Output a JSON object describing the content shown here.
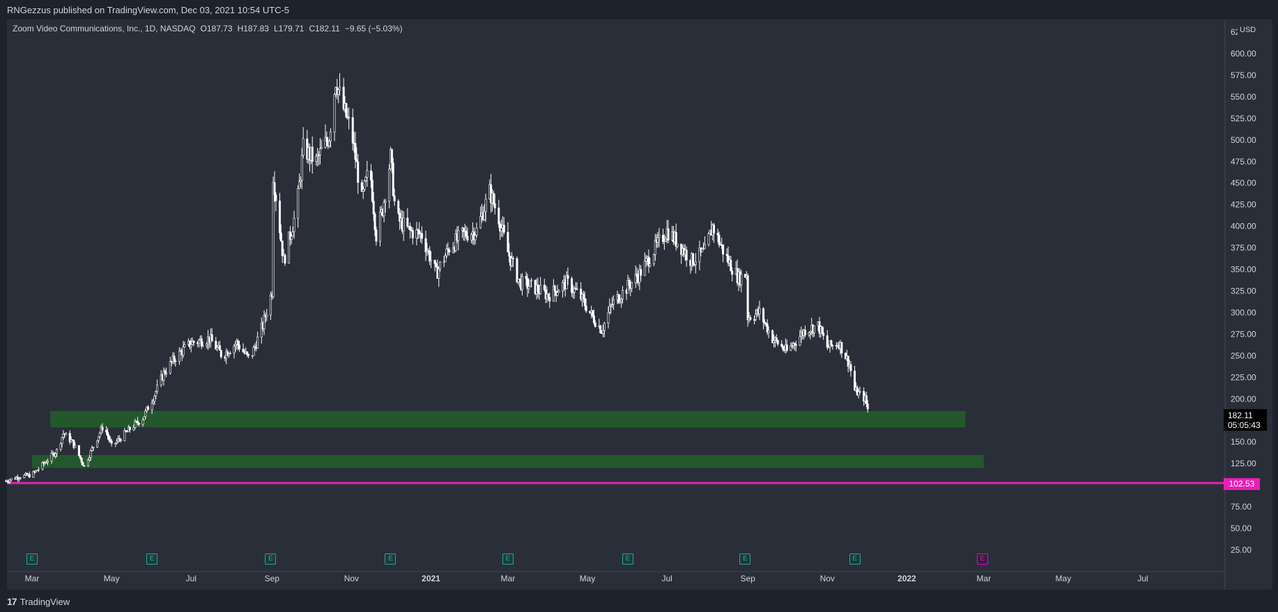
{
  "header": {
    "published_by": "RNGezzus published on TradingView.com, Dec 03, 2021 10:54 UTC-5"
  },
  "legend": {
    "symbol": "Zoom Video Communications, Inc., 1D, NASDAQ",
    "open": "O187.73",
    "high": "H187.83",
    "low": "L179.71",
    "close": "C182.11",
    "change": "−9.65 (−5.03%)"
  },
  "price_axis": {
    "currency": "USD",
    "top_partial_label": "62"
  },
  "last_price": {
    "value": "182.11",
    "countdown": "05:05:43"
  },
  "level_line": {
    "value": "102.53",
    "color": "#e91fb8"
  },
  "footer": {
    "brand": "TradingView",
    "logo": "17"
  },
  "earnings_marker": {
    "label": "E"
  },
  "colors": {
    "background": "#2a2e39",
    "candle": "#ffffff",
    "zone": "#245b2b",
    "level": "#e91fb8",
    "earnings": "#26a69a",
    "earnings_upcoming": "#e600e6"
  },
  "chart_data": {
    "type": "candlestick",
    "title": "",
    "y_axis": {
      "ylim": [
        0,
        640
      ],
      "ticks": [
        25,
        50,
        75,
        100,
        125,
        150,
        175,
        200,
        225,
        250,
        275,
        300,
        325,
        350,
        375,
        400,
        425,
        450,
        475,
        500,
        525,
        550,
        575,
        600
      ],
      "tick_labels": [
        "25.00",
        "50.00",
        "75.00",
        "100.00",
        "125.00",
        "150.00",
        "175.00",
        "200.00",
        "225.00",
        "250.00",
        "275.00",
        "300.00",
        "325.00",
        "350.00",
        "375.00",
        "400.00",
        "425.00",
        "450.00",
        "475.00",
        "500.00",
        "525.00",
        "550.00",
        "575.00",
        "600.00"
      ],
      "side": "right"
    },
    "x_axis": {
      "range": [
        "2020-02-10",
        "2022-09-20"
      ],
      "ticks": [
        {
          "date": "2020-03-01",
          "label": "Mar"
        },
        {
          "date": "2020-05-01",
          "label": "May"
        },
        {
          "date": "2020-07-01",
          "label": "Jul"
        },
        {
          "date": "2020-09-01",
          "label": "Sep"
        },
        {
          "date": "2020-11-01",
          "label": "Nov"
        },
        {
          "date": "2021-01-01",
          "label": "2021"
        },
        {
          "date": "2021-03-01",
          "label": "Mar"
        },
        {
          "date": "2021-05-01",
          "label": "May"
        },
        {
          "date": "2021-07-01",
          "label": "Jul"
        },
        {
          "date": "2021-09-01",
          "label": "Sep"
        },
        {
          "date": "2021-11-01",
          "label": "Nov"
        },
        {
          "date": "2022-01-01",
          "label": "2022"
        },
        {
          "date": "2022-03-01",
          "label": "Mar"
        },
        {
          "date": "2022-05-01",
          "label": "May"
        },
        {
          "date": "2022-07-01",
          "label": "Jul"
        }
      ]
    },
    "series": [
      {
        "style": "candles",
        "close_points": [
          [
            "2020-02-10",
            105
          ],
          [
            "2020-02-20",
            110
          ],
          [
            "2020-03-01",
            112
          ],
          [
            "2020-03-10",
            125
          ],
          [
            "2020-03-20",
            140
          ],
          [
            "2020-03-25",
            160
          ],
          [
            "2020-04-01",
            150
          ],
          [
            "2020-04-10",
            122
          ],
          [
            "2020-04-20",
            155
          ],
          [
            "2020-04-25",
            170
          ],
          [
            "2020-05-01",
            145
          ],
          [
            "2020-05-15",
            165
          ],
          [
            "2020-05-25",
            178
          ],
          [
            "2020-06-03",
            205
          ],
          [
            "2020-06-10",
            230
          ],
          [
            "2020-06-20",
            250
          ],
          [
            "2020-07-01",
            265
          ],
          [
            "2020-07-15",
            270
          ],
          [
            "2020-07-25",
            250
          ],
          [
            "2020-08-05",
            265
          ],
          [
            "2020-08-15",
            245
          ],
          [
            "2020-08-25",
            285
          ],
          [
            "2020-09-01",
            325
          ],
          [
            "2020-09-02",
            460
          ],
          [
            "2020-09-10",
            360
          ],
          [
            "2020-09-20",
            420
          ],
          [
            "2020-09-25",
            490
          ],
          [
            "2020-10-05",
            475
          ],
          [
            "2020-10-15",
            505
          ],
          [
            "2020-10-20",
            570
          ],
          [
            "2020-10-25",
            540
          ],
          [
            "2020-11-01",
            510
          ],
          [
            "2020-11-09",
            430
          ],
          [
            "2020-11-15",
            470
          ],
          [
            "2020-11-20",
            390
          ],
          [
            "2020-11-25",
            420
          ],
          [
            "2020-12-01",
            480
          ],
          [
            "2020-12-05",
            410
          ],
          [
            "2020-12-15",
            395
          ],
          [
            "2020-12-25",
            390
          ],
          [
            "2021-01-05",
            345
          ],
          [
            "2021-01-15",
            375
          ],
          [
            "2021-01-25",
            390
          ],
          [
            "2021-02-05",
            395
          ],
          [
            "2021-02-15",
            440
          ],
          [
            "2021-02-22",
            410
          ],
          [
            "2021-03-01",
            370
          ],
          [
            "2021-03-10",
            335
          ],
          [
            "2021-03-20",
            330
          ],
          [
            "2021-04-01",
            320
          ],
          [
            "2021-04-15",
            335
          ],
          [
            "2021-04-25",
            320
          ],
          [
            "2021-05-05",
            295
          ],
          [
            "2021-05-12",
            280
          ],
          [
            "2021-05-20",
            310
          ],
          [
            "2021-06-01",
            330
          ],
          [
            "2021-06-10",
            345
          ],
          [
            "2021-06-20",
            370
          ],
          [
            "2021-07-01",
            395
          ],
          [
            "2021-07-10",
            380
          ],
          [
            "2021-07-20",
            360
          ],
          [
            "2021-07-30",
            370
          ],
          [
            "2021-08-05",
            400
          ],
          [
            "2021-08-15",
            365
          ],
          [
            "2021-08-25",
            340
          ],
          [
            "2021-08-31",
            345
          ],
          [
            "2021-09-01",
            295
          ],
          [
            "2021-09-10",
            300
          ],
          [
            "2021-09-20",
            270
          ],
          [
            "2021-10-01",
            255
          ],
          [
            "2021-10-15",
            280
          ],
          [
            "2021-10-25",
            285
          ],
          [
            "2021-11-01",
            260
          ],
          [
            "2021-11-10",
            265
          ],
          [
            "2021-11-18",
            240
          ],
          [
            "2021-11-22",
            210
          ],
          [
            "2021-11-30",
            200
          ],
          [
            "2021-12-03",
            182
          ]
        ]
      }
    ],
    "annotations": [
      {
        "type": "zone",
        "y_low": 167,
        "y_high": 186,
        "x_start": "2020-03-15",
        "x_end": "2022-02-15"
      },
      {
        "type": "zone",
        "y_low": 120,
        "y_high": 135,
        "x_start": "2020-03-01",
        "x_end": "2022-03-01"
      },
      {
        "type": "hline",
        "y": 102.53,
        "label": "102.53"
      },
      {
        "type": "price_label",
        "y": 182.11,
        "label": "182.11"
      }
    ],
    "earnings_dates": [
      "2020-03-01",
      "2020-06-01",
      "2020-08-31",
      "2020-12-01",
      "2021-03-01",
      "2021-06-01",
      "2021-08-30",
      "2021-11-22"
    ],
    "upcoming_earnings_dates": [
      "2022-02-28"
    ],
    "grid": false
  }
}
